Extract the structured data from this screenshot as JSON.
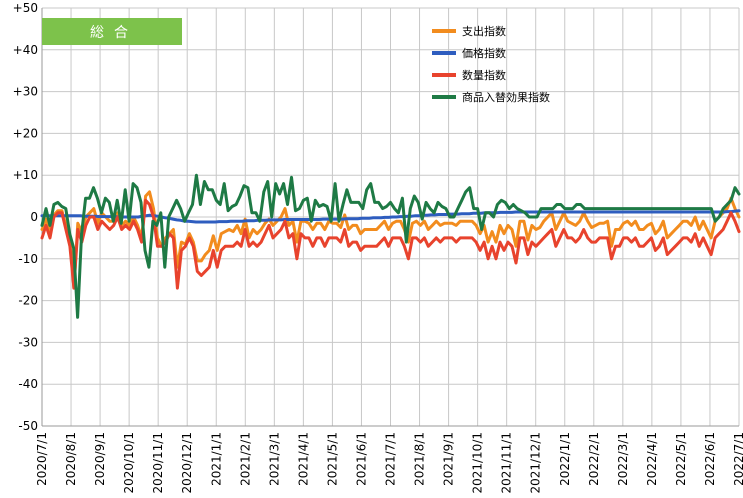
{
  "chart_data": {
    "type": "line",
    "badge": "総合",
    "ylim": [
      -50,
      50
    ],
    "y_ticks": [
      "+50",
      "+40",
      "+30",
      "+20",
      "+10",
      "0",
      "-10",
      "-20",
      "-30",
      "-40",
      "-50"
    ],
    "y_tick_values": [
      50,
      40,
      30,
      20,
      10,
      0,
      -10,
      -20,
      -30,
      -40,
      -50
    ],
    "x_ticks": [
      "2020/7/1",
      "2020/8/1",
      "2020/9/1",
      "2020/10/1",
      "2020/11/1",
      "2020/12/1",
      "2021/1/1",
      "2021/2/1",
      "2021/3/1",
      "2021/4/1",
      "2021/5/1",
      "2021/6/1",
      "2021/7/1",
      "2021/8/1",
      "2021/9/1",
      "2021/10/1",
      "2021/11/1",
      "2021/12/1",
      "2022/1/1",
      "2022/2/1",
      "2022/3/1",
      "2022/4/1",
      "2022/5/1",
      "2022/6/1",
      "2022/7/1"
    ],
    "grid_x": true,
    "grid_y": true,
    "legend_position": "top-right",
    "colors": {
      "badge": "#7dc24b",
      "grid": "#c8c8c8",
      "axis": "#9a9a9a"
    },
    "series": [
      {
        "name": "支出指数",
        "color": "#f28c1e",
        "values": [
          -3,
          -0.5,
          -3.5,
          0.5,
          1.5,
          1.5,
          -2,
          -5,
          -17,
          -1.5,
          -3.5,
          0,
          1,
          2,
          -1.5,
          1,
          0,
          -1,
          -1,
          1,
          -2,
          -1,
          -2,
          0,
          -2,
          -5,
          5,
          6,
          2,
          -5,
          -7,
          -5,
          -4,
          -3,
          -12,
          -6,
          -6.5,
          -4,
          -6,
          -10.5,
          -10.5,
          -9,
          -8,
          -4.5,
          -8,
          -4,
          -3.5,
          -3,
          -3.5,
          -2,
          -4,
          -0.5,
          -5,
          -3,
          -4,
          -3,
          -1.5,
          -0.5,
          -2,
          -1,
          0,
          2,
          -2,
          -1,
          -6,
          -1,
          -1,
          -1.5,
          -3,
          -1.5,
          -1.5,
          -3,
          -1,
          -1.5,
          -1.5,
          -2.5,
          0.5,
          -3,
          -2,
          -2,
          -4,
          -3,
          -3,
          -3,
          -3,
          -2,
          -1,
          -3,
          -1.5,
          -1,
          -1,
          -3,
          -6,
          -1.5,
          -1,
          -2,
          -1,
          -3,
          -2,
          -1,
          -2,
          -1.5,
          -1.5,
          -1.5,
          -2,
          -1,
          -1,
          -1,
          -1,
          -2,
          -4,
          -2,
          -6,
          -3.5,
          -6,
          -2,
          -4,
          -2,
          -3,
          -7,
          -1,
          -1,
          -5.5,
          -2,
          -3,
          -2.5,
          -1,
          0,
          1,
          -3,
          -1,
          1,
          -1,
          -1.5,
          -2,
          -1,
          1,
          -1,
          -2.5,
          -2,
          -1.5,
          -1.5,
          -1,
          -7,
          -3,
          -3,
          -1.5,
          -1,
          -2,
          -1,
          -3,
          -3,
          -2,
          -1.5,
          -4,
          -3,
          -1,
          -5,
          -4,
          -3,
          -2,
          -1,
          -1,
          -2,
          0,
          -3,
          -1,
          -3,
          -5,
          -1,
          0,
          1,
          2,
          4.5,
          2,
          0
        ]
      },
      {
        "name": "価格指数",
        "color": "#2e5dbf",
        "values": [
          0.3,
          0.3,
          0.3,
          0.3,
          0.3,
          0.3,
          0.3,
          0.3,
          0.3,
          0.3,
          0.3,
          0.2,
          0.2,
          0.2,
          0.2,
          0.1,
          0.1,
          0.1,
          0.1,
          0.1,
          0,
          0,
          0,
          0,
          0,
          0,
          0.2,
          0.3,
          0.4,
          0.3,
          0.2,
          0,
          -0.2,
          -0.3,
          -0.5,
          -0.7,
          -0.8,
          -1,
          -1,
          -1.1,
          -1.2,
          -1.2,
          -1.2,
          -1.2,
          -1.2,
          -1.2,
          -1.1,
          -1.1,
          -1.1,
          -1,
          -1,
          -1,
          -1,
          -0.9,
          -0.9,
          -0.9,
          -0.8,
          -0.8,
          -0.8,
          -0.7,
          -0.7,
          -0.7,
          -0.7,
          -0.6,
          -0.6,
          -0.6,
          -0.6,
          -0.6,
          -0.6,
          -0.6,
          -0.6,
          -0.6,
          -0.6,
          -0.5,
          -0.5,
          -0.5,
          -0.5,
          -0.5,
          -0.5,
          -0.4,
          -0.4,
          -0.4,
          -0.4,
          -0.3,
          -0.3,
          -0.3,
          -0.2,
          -0.2,
          -0.2,
          -0.1,
          -0.1,
          0,
          0,
          0.1,
          0.1,
          0.2,
          0.2,
          0.3,
          0.3,
          0.4,
          0.4,
          0.5,
          0.5,
          0.6,
          0.6,
          0.6,
          0.7,
          0.7,
          0.7,
          0.8,
          0.8,
          0.8,
          0.9,
          0.9,
          0.9,
          1,
          1,
          1,
          1,
          1.1,
          1.1,
          1.1,
          1.1,
          1.2,
          1.2,
          1.2,
          1.2,
          1.2,
          1.2,
          1.2,
          1.2,
          1.2,
          1.2,
          1.2,
          1.2,
          1.2,
          1.2,
          1.2,
          1.2,
          1.2,
          1.2,
          1.2,
          1.2,
          1.2,
          1.2,
          1.2,
          1.2,
          1.2,
          1.2,
          1.2,
          1.2,
          1.2,
          1.2,
          1.2,
          1.2,
          1.2,
          1.2,
          1.2,
          1.2,
          1.2,
          1.2,
          1.2,
          1.2,
          1.2,
          1.2,
          1.2,
          1.2,
          1.2,
          1.2,
          1.2,
          1.2,
          1.2,
          1.2,
          1.2,
          1.2,
          1.2,
          1.2,
          1.2,
          1.3,
          1.3,
          1.4,
          1.5
        ]
      },
      {
        "name": "数量指数",
        "color": "#e8432d",
        "values": [
          -5,
          -2,
          -5,
          0,
          1,
          1,
          -3,
          -7,
          -17,
          -3,
          -6,
          -2,
          0,
          0,
          -3,
          -1,
          -2,
          -3,
          -2,
          0,
          -3,
          -2,
          -3,
          -1,
          -3,
          -6,
          4,
          3,
          0,
          -7,
          -7,
          -6,
          -4,
          -5,
          -17,
          -8,
          -7,
          -5,
          -7,
          -13,
          -14,
          -13,
          -12,
          -8,
          -12,
          -8,
          -7,
          -7,
          -7,
          -6,
          -7,
          -3,
          -7,
          -6,
          -7,
          -6,
          -4,
          -2,
          -5,
          -4,
          -3,
          -1,
          -5,
          -4,
          -10,
          -4,
          -5,
          -5,
          -7,
          -5,
          -5,
          -7,
          -5,
          -5,
          -5,
          -6,
          -3,
          -7,
          -6,
          -6,
          -8,
          -7,
          -7,
          -7,
          -7,
          -6,
          -5,
          -7,
          -5,
          -5,
          -5,
          -7,
          -10,
          -5,
          -5,
          -6,
          -5,
          -7,
          -6,
          -5,
          -6,
          -5,
          -5,
          -5,
          -6,
          -5,
          -5,
          -5,
          -5,
          -6,
          -8,
          -6,
          -10,
          -7,
          -10,
          -6,
          -8,
          -6,
          -7,
          -11,
          -5,
          -5,
          -9,
          -6,
          -7,
          -6,
          -5,
          -4,
          -3,
          -7,
          -5,
          -3,
          -5,
          -5,
          -6,
          -5,
          -3,
          -5,
          -6,
          -6,
          -5,
          -5,
          -5,
          -10,
          -7,
          -7,
          -5,
          -5,
          -6,
          -5,
          -7,
          -7,
          -6,
          -5,
          -8,
          -7,
          -5,
          -9,
          -8,
          -7,
          -6,
          -5,
          -5,
          -6,
          -4,
          -7,
          -5,
          -7,
          -9,
          -5,
          -4,
          -3,
          -1,
          1,
          -1,
          -3.5
        ]
      },
      {
        "name": "商品入替効果指数",
        "color": "#1e7a45",
        "values": [
          -2,
          2,
          -2,
          3,
          3.5,
          2.5,
          2,
          -4,
          -7.5,
          -24,
          -4,
          4.5,
          4.5,
          7,
          4.5,
          1,
          4.5,
          3.5,
          -1,
          4,
          -1.5,
          6.5,
          -1,
          8,
          7,
          3.5,
          -8,
          -12,
          -1,
          -2,
          1,
          -12,
          0,
          2,
          4,
          2,
          -1,
          1,
          3,
          10,
          3,
          8.5,
          6.5,
          6.5,
          4,
          3,
          8,
          1.5,
          2.5,
          3,
          5,
          7.5,
          7,
          1,
          1,
          -1,
          6,
          8.5,
          0,
          8,
          5.5,
          8,
          3,
          9.5,
          1.5,
          2,
          4,
          4.5,
          -1,
          4,
          2.5,
          3,
          2.5,
          -1,
          8,
          -1,
          3,
          6.5,
          3.5,
          3.5,
          3.5,
          2,
          6.5,
          8,
          3.5,
          3.5,
          2,
          2.5,
          3.5,
          2,
          1,
          4.5,
          -6,
          2,
          5,
          3.5,
          -0.5,
          3.5,
          2,
          1,
          3.5,
          2.5,
          2,
          0,
          0,
          2,
          4,
          6,
          7,
          2,
          2,
          -3,
          1,
          1,
          0,
          3,
          4,
          3.5,
          2,
          3,
          2,
          1.5,
          1,
          0,
          0,
          0,
          2,
          2,
          2,
          2,
          3,
          3,
          2,
          2,
          2,
          3,
          3,
          2,
          2,
          2,
          2,
          2,
          2,
          2,
          2,
          2,
          2,
          2,
          2,
          2,
          2,
          2,
          2,
          2,
          2,
          2,
          2,
          2,
          2,
          2,
          2,
          2,
          2,
          2,
          2,
          2,
          2,
          2,
          2,
          2,
          -1,
          0,
          2,
          3,
          4,
          7,
          5.5
        ]
      }
    ]
  }
}
